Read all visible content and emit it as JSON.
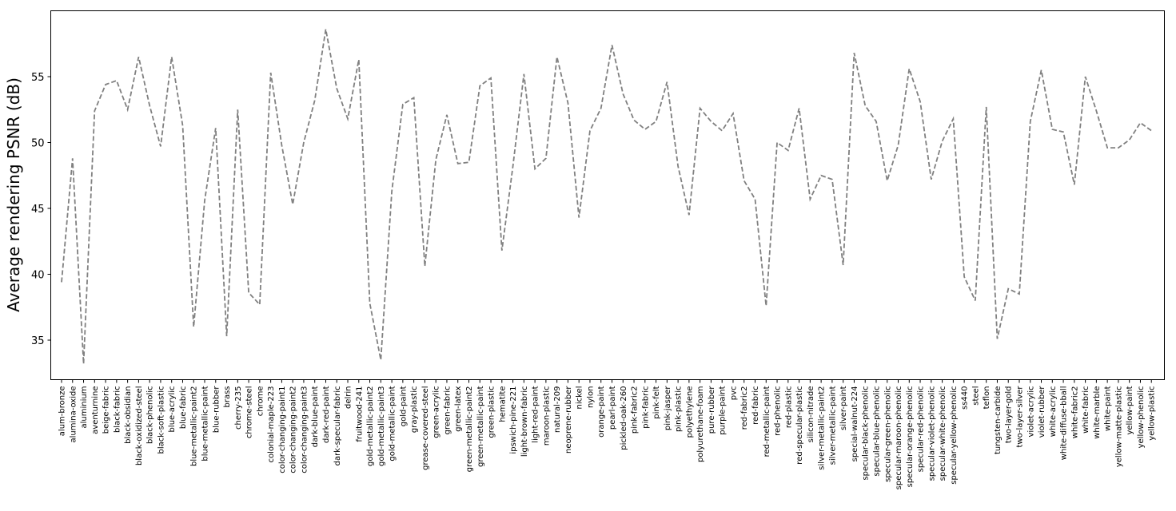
{
  "chart_data": {
    "type": "line",
    "title": "",
    "xlabel": "",
    "ylabel": "Average rendering PSNR (dB)",
    "ylim": [
      32,
      60
    ],
    "yticks": [
      35,
      40,
      45,
      50,
      55
    ],
    "grid": false,
    "line_color": "#808080",
    "line_style": "dashed",
    "categories": [
      "alum-bronze",
      "alumina-oxide",
      "aluminium",
      "aventurnine",
      "beige-fabric",
      "black-fabric",
      "black-obsidian",
      "black-oxidized-steel",
      "black-phenolic",
      "black-soft-plastic",
      "blue-acrylic",
      "blue-fabric",
      "blue-metallic-paint2",
      "blue-metallic-paint",
      "blue-rubber",
      "brass",
      "cherry-235",
      "chrome-steel",
      "chrome",
      "colonial-maple-223",
      "color-changing-paint1",
      "color-changing-paint2",
      "color-changing-paint3",
      "dark-blue-paint",
      "dark-red-paint",
      "dark-specular-fabric",
      "delrin",
      "fruitwood-241",
      "gold-metallic-paint2",
      "gold-metallic-paint3",
      "gold-metallic-paint",
      "gold-paint",
      "gray-plastic",
      "grease-covered-steel",
      "green-acrylic",
      "green-fabric",
      "green-latex",
      "green-metallic-paint2",
      "green-metallic-paint",
      "green-plastic",
      "hematite",
      "ipswich-pine-221",
      "light-brown-fabric",
      "light-red-paint",
      "maroon-plastic",
      "natural-209",
      "neoprene-rubber",
      "nickel",
      "nylon",
      "orange-paint",
      "pearl-paint",
      "pickled-oak-260",
      "pink-fabric2",
      "pink-fabric",
      "pink-felt",
      "pink-jasper",
      "pink-plastic",
      "polyethylene",
      "polyurethane-foam",
      "pure-rubber",
      "purple-paint",
      "pvc",
      "red-fabric2",
      "red-fabric",
      "red-metallic-paint",
      "red-phenolic",
      "red-plastic",
      "red-specular-plastic",
      "silicon-nitrade",
      "silver-metallic-paint2",
      "silver-metallic-paint",
      "silver-paint",
      "special-walnut-224",
      "specular-black-phenolic",
      "specular-blue-phenolic",
      "specular-green-phenolic",
      "specular-maroon-phenolic",
      "specular-orange-phenolic",
      "specular-red-phenolic",
      "specular-violet-phenolic",
      "specular-white-phenolic",
      "specular-yellow-phenolic",
      "ss440",
      "steel",
      "teflon",
      "tungsten-carbide",
      "two-layer-gold",
      "two-layer-silver",
      "violet-acrylic",
      "violet-rubber",
      "white-acrylic",
      "white-diffuse-bball",
      "white-fabric2",
      "white-fabric",
      "white-marble",
      "white-paint",
      "yellow-matte-plastic",
      "yellow-paint",
      "yellow-phenolic",
      "yellow-plastic"
    ],
    "values": [
      39.4,
      48.8,
      33.2,
      52.4,
      54.4,
      54.7,
      52.5,
      56.5,
      52.8,
      49.7,
      56.5,
      51.3,
      36.0,
      45.6,
      51.1,
      35.3,
      52.5,
      38.6,
      37.7,
      55.3,
      49.8,
      45.3,
      50.0,
      53.2,
      58.6,
      54.1,
      51.8,
      56.3,
      37.8,
      33.5,
      46.3,
      52.9,
      53.4,
      40.6,
      48.7,
      52.1,
      48.4,
      48.5,
      54.3,
      54.9,
      41.8,
      48.2,
      55.2,
      48.0,
      48.8,
      56.5,
      53.0,
      44.3,
      50.9,
      52.6,
      57.4,
      53.7,
      51.7,
      51.0,
      51.6,
      54.6,
      48.2,
      44.5,
      52.6,
      51.6,
      50.9,
      52.2,
      47.1,
      45.7,
      37.6,
      50.0,
      49.4,
      52.6,
      45.7,
      47.5,
      47.2,
      40.7,
      56.8,
      52.8,
      51.6,
      47.1,
      49.8,
      55.6,
      53.1,
      47.2,
      50.1,
      51.8,
      39.8,
      38.0,
      52.7,
      35.1,
      38.9,
      38.5,
      51.6,
      55.5,
      51.0,
      50.8,
      46.8,
      55.0,
      52.4,
      49.6,
      49.6,
      50.2,
      51.5,
      50.9
    ]
  }
}
